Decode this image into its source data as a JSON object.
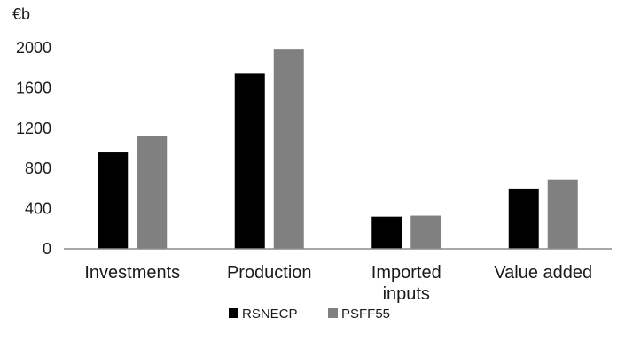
{
  "chart_data": {
    "type": "bar",
    "ylabel": "€b",
    "ylim": [
      0,
      2000
    ],
    "yticks": [
      0,
      400,
      800,
      1200,
      1600,
      2000
    ],
    "grid": false,
    "legend_position": "bottom",
    "categories": [
      "Investments",
      "Production",
      "Imported inputs",
      "Value added"
    ],
    "category_lines": [
      [
        "Investments"
      ],
      [
        "Production"
      ],
      [
        "Imported",
        "inputs"
      ],
      [
        "Value added"
      ]
    ],
    "series": [
      {
        "name": "RSNECP",
        "color": "#000000",
        "values": [
          960,
          1750,
          320,
          600
        ]
      },
      {
        "name": "PSFF55",
        "color": "#808080",
        "values": [
          1120,
          1990,
          330,
          690
        ]
      }
    ]
  }
}
